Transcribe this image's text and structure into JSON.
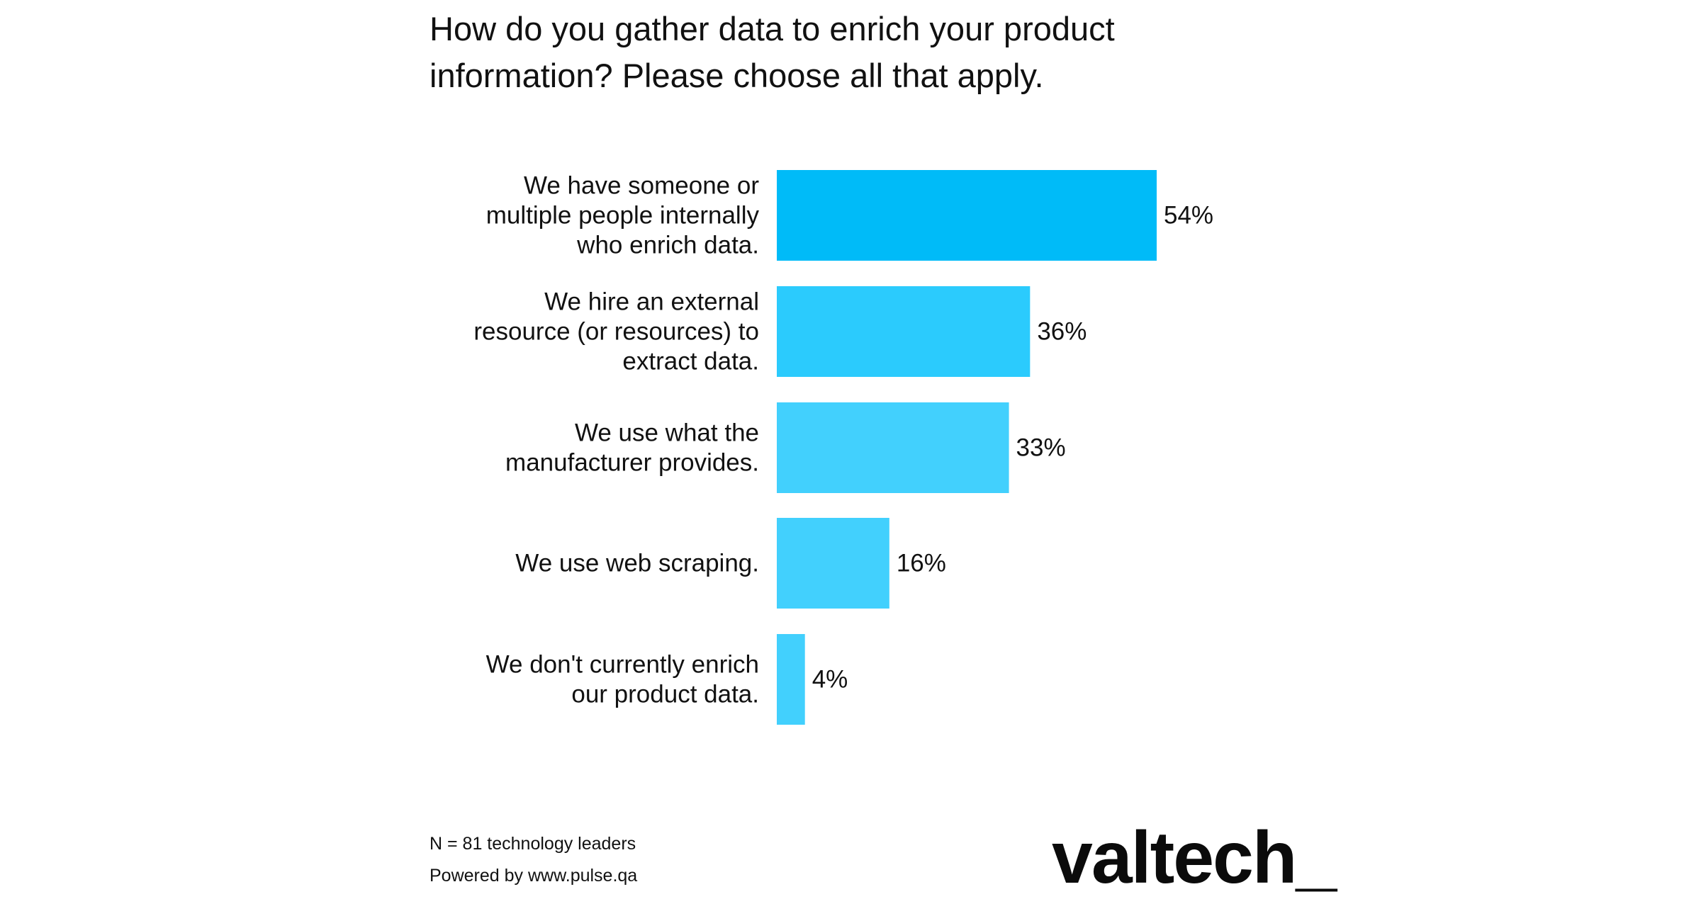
{
  "chart_data": {
    "type": "bar",
    "orientation": "horizontal",
    "title": "How do you gather data to enrich your product information? Please choose all that apply.",
    "categories": [
      [
        "We have someone or",
        "multiple people internally",
        "who enrich data."
      ],
      [
        "We hire an external",
        "resource (or resources) to",
        "extract data."
      ],
      [
        "We use what the",
        "manufacturer provides."
      ],
      [
        "We use web scraping."
      ],
      [
        "We don't currently enrich",
        "our product data."
      ]
    ],
    "values": [
      54,
      36,
      33,
      16,
      4
    ],
    "value_labels": [
      "54%",
      "36%",
      "33%",
      "16%",
      "4%"
    ],
    "unit": "%",
    "xlim": [
      0,
      54
    ],
    "grid": false,
    "legend": "none",
    "colors": [
      "#00BBF8",
      "#2BCBFD",
      "#42D0FD",
      "#42D0FD",
      "#42D0FD"
    ]
  },
  "footer": {
    "sample": "N = 81 technology leaders",
    "powered_by": "Powered by www.pulse.qa"
  },
  "brand": {
    "logo_text": "valtech_"
  }
}
